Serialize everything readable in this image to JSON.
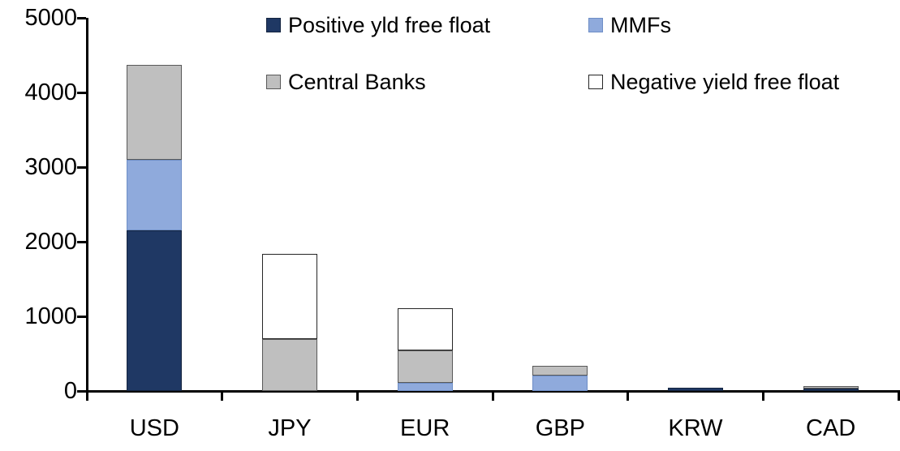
{
  "chart_data": {
    "type": "bar",
    "subtype": "stacked-vertical",
    "title": "",
    "xlabel": "",
    "ylabel": "",
    "categories": [
      "USD",
      "JPY",
      "EUR",
      "GBP",
      "KRW",
      "CAD"
    ],
    "series": [
      {
        "name": "Positive yld free float",
        "color": "#1F3864",
        "border": "#14243f",
        "values": [
          2150,
          0,
          0,
          0,
          45,
          30
        ]
      },
      {
        "name": "MMFs",
        "color": "#8FAADC",
        "border": "#6e8ec6",
        "values": [
          950,
          0,
          110,
          210,
          0,
          0
        ]
      },
      {
        "name": "Central Banks",
        "color": "#BFBFBF",
        "border": "#595959",
        "values": [
          1270,
          700,
          435,
          125,
          0,
          35
        ]
      },
      {
        "name": "Negative yield free float",
        "color": "#FFFFFF",
        "border": "#262626",
        "values": [
          0,
          1140,
          565,
          0,
          0,
          0
        ]
      }
    ],
    "totals": [
      4370,
      1840,
      1110,
      335,
      45,
      65
    ],
    "ylim": [
      0,
      5000
    ],
    "yticks": [
      0,
      1000,
      2000,
      3000,
      4000,
      5000
    ],
    "grid": false,
    "legend_position": "top",
    "legend_rows": [
      [
        "Positive yld free float",
        "MMFs"
      ],
      [
        "Central Banks",
        "Negative yield free float"
      ]
    ],
    "axis_color": "#000000",
    "text_color": "#000000"
  }
}
